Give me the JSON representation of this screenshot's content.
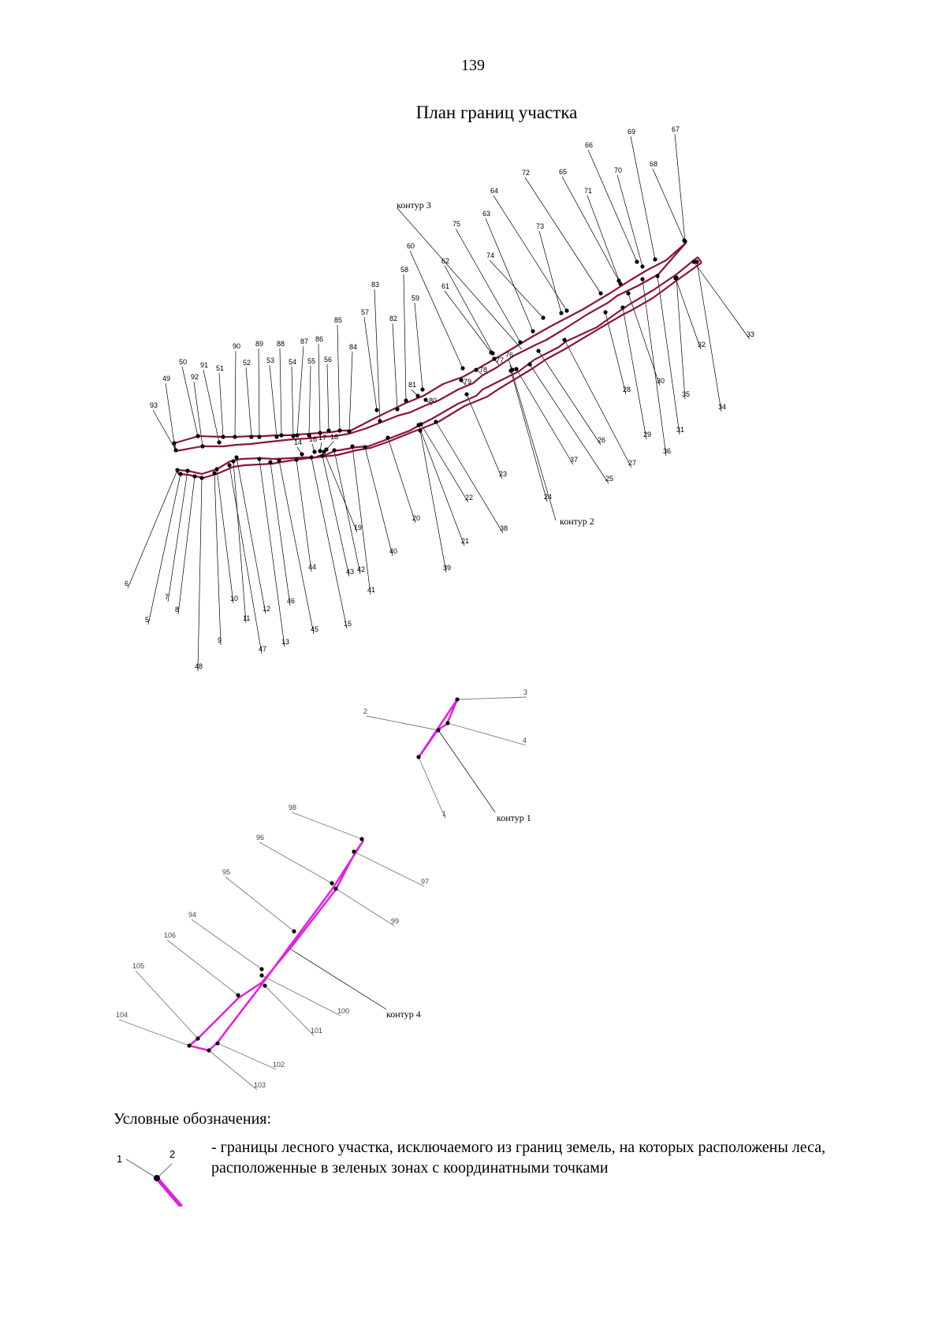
{
  "page": {
    "number": "139",
    "title": "План границ участка"
  },
  "plan": {
    "contours": [
      "контур 3",
      "контур 2",
      "контур 1",
      "контур 4"
    ],
    "colors": {
      "contours_2_3": "#8b1538",
      "contours_1_4": "#e020e0",
      "leader": "#000000",
      "leader_grey": "#7a7a7a"
    }
  },
  "legend": {
    "title": "Условные обозначения:",
    "sample_labels": [
      "1",
      "2"
    ],
    "text": "- границы лесного участка, исключаемого из границ земель, на которых расположены леса, расположенные в зеленых зонах с координатными точками"
  }
}
